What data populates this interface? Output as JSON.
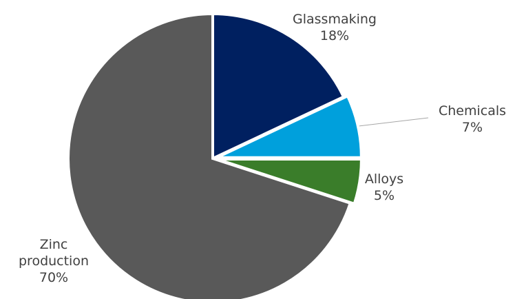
{
  "chart_data": {
    "type": "pie",
    "title": "",
    "start_angle_deg": 0,
    "direction": "clockwise",
    "slices": [
      {
        "name": "Glassmaking",
        "value": 18,
        "label": "18%",
        "color": "#002060"
      },
      {
        "name": "Chemicals",
        "value": 7,
        "label": "7%",
        "color": "#00a0dc"
      },
      {
        "name": "Alloys",
        "value": 5,
        "label": "5%",
        "color": "#3a7d2a"
      },
      {
        "name": "Zinc production",
        "value": 70,
        "label": "70%",
        "color": "#595959"
      }
    ],
    "legend": "none",
    "label_lines": {
      "Zinc production": [
        "Zinc",
        "production"
      ]
    }
  }
}
